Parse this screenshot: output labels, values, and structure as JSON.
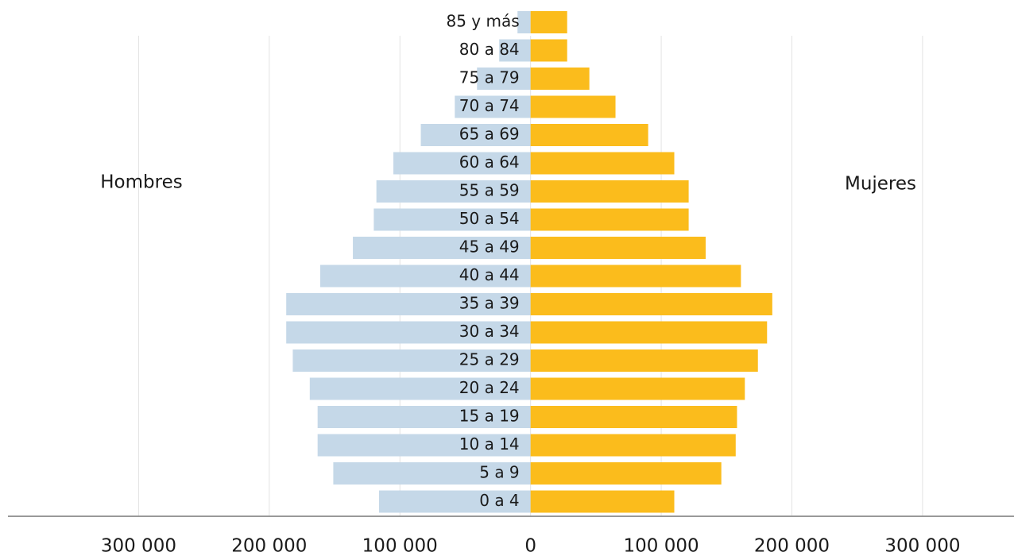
{
  "chart_data": {
    "type": "pyramid",
    "categories": [
      "85 y más",
      "80 a 84",
      "75 a 79",
      "70 a 74",
      "65 a 69",
      "60 a 64",
      "55 a 59",
      "50 a 54",
      "45 a 49",
      "40 a 44",
      "35 a 39",
      "30 a 34",
      "25 a 29",
      "20 a 24",
      "15 a 19",
      "10 a 14",
      "5 a  9",
      "0 a 4"
    ],
    "series": [
      {
        "name": "Hombres",
        "color": "#c5d8e8",
        "values": [
          10000,
          24000,
          41000,
          58000,
          84000,
          105000,
          118000,
          120000,
          136000,
          161000,
          187000,
          187000,
          182000,
          169000,
          163000,
          163000,
          151000,
          116000
        ]
      },
      {
        "name": "Mujeres",
        "color": "#fbbc1c",
        "values": [
          28000,
          28000,
          45000,
          65000,
          90000,
          110000,
          121000,
          121000,
          134000,
          161000,
          185000,
          181000,
          174000,
          164000,
          158000,
          157000,
          146000,
          110000
        ]
      }
    ],
    "xlim": [
      -400000,
      370000
    ],
    "xticks": [
      {
        "value": -300000,
        "label": "300 000"
      },
      {
        "value": -200000,
        "label": "200 000"
      },
      {
        "value": -100000,
        "label": "100 000"
      },
      0,
      {
        "value": 100000,
        "label": "100 000"
      },
      {
        "value": 200000,
        "label": "200 000"
      },
      {
        "value": 300000,
        "label": "300 000"
      }
    ],
    "grid": true
  }
}
